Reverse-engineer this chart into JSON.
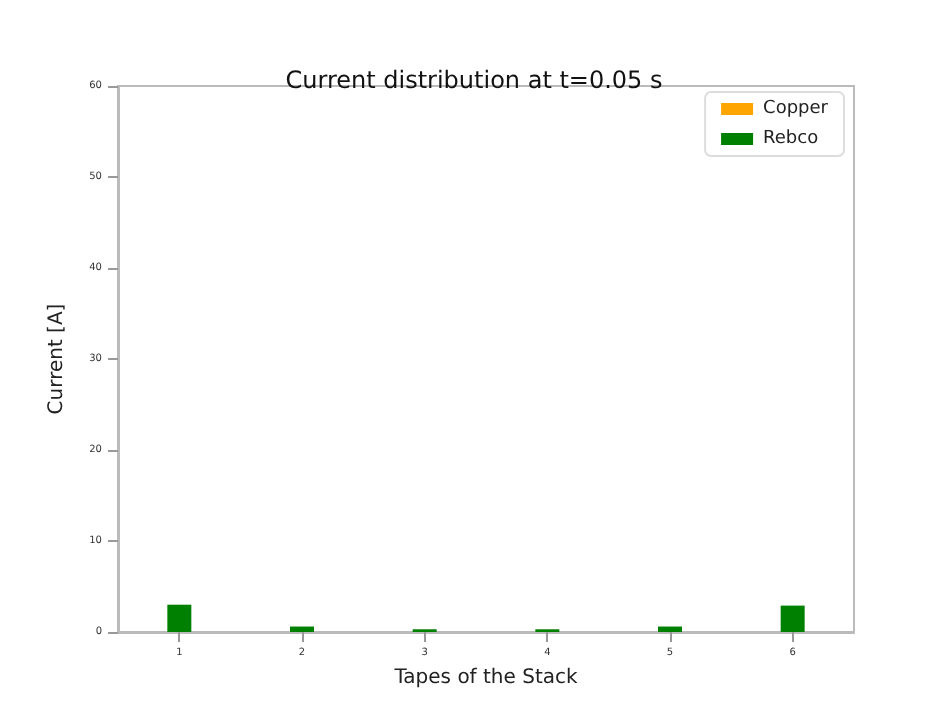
{
  "chart_data": {
    "type": "bar",
    "title": "Current distribution at t=0.05 s",
    "xlabel": "Tapes of the Stack",
    "ylabel": "Current [A]",
    "categories": [
      "1",
      "2",
      "3",
      "4",
      "5",
      "6"
    ],
    "series": [
      {
        "name": "Copper",
        "color": "#ffa500",
        "values": [
          0,
          0,
          0,
          0,
          0,
          0
        ]
      },
      {
        "name": "Rebco",
        "color": "#008000",
        "values": [
          3.0,
          0.6,
          0.3,
          0.3,
          0.6,
          2.9
        ]
      }
    ],
    "stacked": true,
    "ylim": [
      0,
      60
    ],
    "yticks": [
      0,
      10,
      20,
      30,
      40,
      50,
      60
    ],
    "grid": false,
    "legend": "top right"
  }
}
